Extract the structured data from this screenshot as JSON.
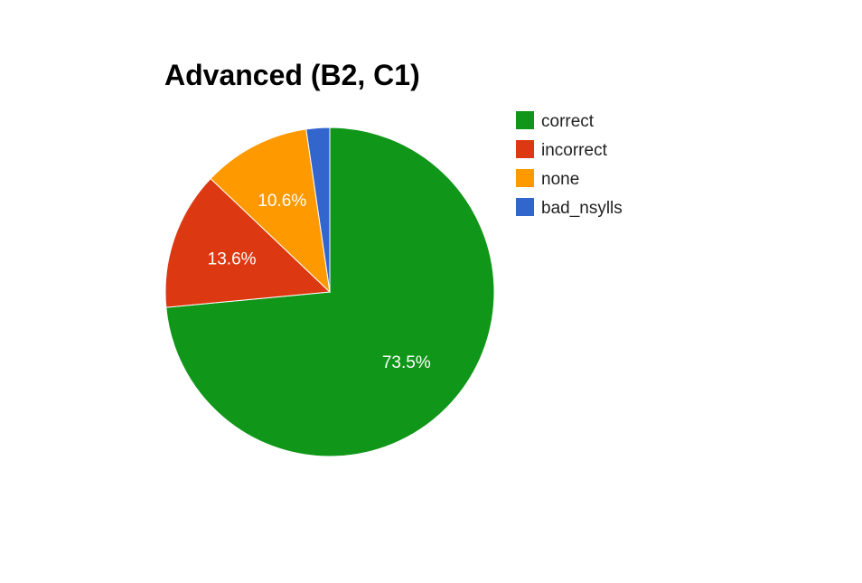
{
  "chart_data": {
    "type": "pie",
    "title": "Advanced (B2, C1)",
    "slices": [
      {
        "label": "correct",
        "value": 73.5,
        "display": "73.5%",
        "color": "#109618"
      },
      {
        "label": "incorrect",
        "value": 13.6,
        "display": "13.6%",
        "color": "#dc3912"
      },
      {
        "label": "none",
        "value": 10.6,
        "display": "10.6%",
        "color": "#ff9900"
      },
      {
        "label": "bad_nsylls",
        "value": 2.3,
        "display": "",
        "color": "#3366cc"
      }
    ],
    "legend": {
      "position": "right"
    }
  }
}
